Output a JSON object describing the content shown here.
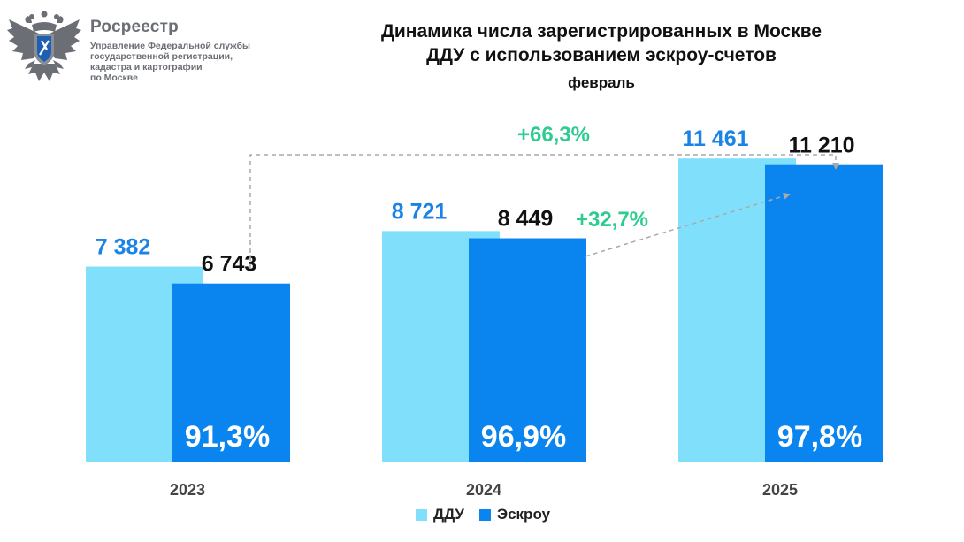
{
  "logo": {
    "name": "Росреестр",
    "subtitle_lines": [
      "Управление Федеральной службы",
      "государственной регистрации,",
      "кадастра и картографии",
      "по Москве"
    ]
  },
  "colors": {
    "ddu": "#80e0fb",
    "escrow": "#0a84ee",
    "ddu_label": "#1a83e5",
    "escrow_label": "#111111",
    "growth": "#2ecc8f",
    "arrow": "#a9a9a9"
  },
  "chart_data": {
    "type": "bar",
    "title_lines": [
      "Динамика числа зарегистрированных в Москве",
      "ДДУ с использованием эскроу-счетов"
    ],
    "subtitle": "февраль",
    "categories": [
      "2023",
      "2024",
      "2025"
    ],
    "series": [
      {
        "name": "ДДУ",
        "values": [
          7382,
          8721,
          11461
        ],
        "labels": [
          "7 382",
          "8 721",
          "11 461"
        ]
      },
      {
        "name": "Эскроу",
        "values": [
          6743,
          8449,
          11210
        ],
        "labels": [
          "6 743",
          "8 449",
          "11 210"
        ]
      }
    ],
    "share_labels": [
      "91,3%",
      "96,9%",
      "97,8%"
    ],
    "annotations": [
      {
        "text": "+66,3%",
        "from": "2023",
        "to": "2025",
        "series": "Эскроу"
      },
      {
        "text": "+32,7%",
        "from": "2024",
        "to": "2025",
        "series": "Эскроу"
      }
    ],
    "legend": [
      "ДДУ",
      "Эскроу"
    ],
    "legend_position": "bottom-center",
    "ylim": [
      0,
      15000
    ],
    "grid": false
  }
}
